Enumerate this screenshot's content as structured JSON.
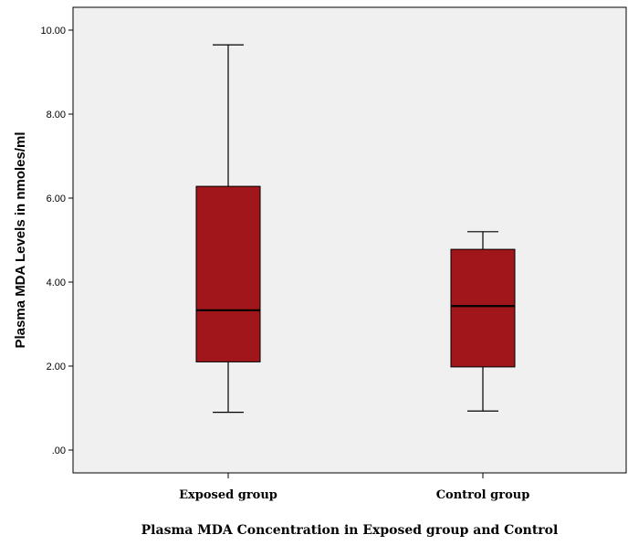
{
  "chart_data": {
    "type": "boxplot",
    "xlabel": "Plasma MDA Concentration in Exposed group and Control",
    "ylabel": "Plasma MDA Levels in nmoles/ml",
    "ylim": [
      -0.5,
      10.5
    ],
    "yticks": [
      0,
      2,
      4,
      6,
      8,
      10
    ],
    "ytick_labels": [
      ".00",
      "2.00",
      "4.00",
      "6.00",
      "8.00",
      "10.00"
    ],
    "categories": [
      "Exposed group",
      "Control group"
    ],
    "boxes": [
      {
        "category": "Exposed group",
        "min": 0.9,
        "q1": 2.1,
        "median": 3.33,
        "q3": 6.28,
        "max": 9.65
      },
      {
        "category": "Control group",
        "min": 0.93,
        "q1": 1.98,
        "median": 3.43,
        "q3": 4.78,
        "max": 5.2
      }
    ],
    "grid": false,
    "colors": {
      "box_fill": "#a0161b",
      "plot_background": "#f0f0f0",
      "line": "#000000"
    }
  }
}
